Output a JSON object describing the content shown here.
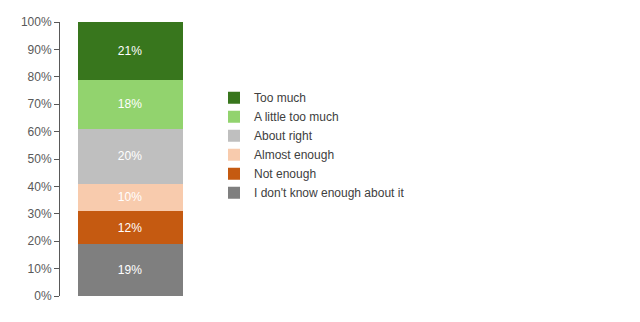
{
  "chart_data": {
    "type": "bar",
    "stacked": true,
    "categories": [
      null
    ],
    "series": [
      {
        "name": "I don't know enough about it",
        "color": "#7f7f7f",
        "values": [
          19
        ],
        "value_labels": [
          "19%"
        ]
      },
      {
        "name": "Not enough",
        "color": "#c55a11",
        "values": [
          12
        ],
        "value_labels": [
          "12%"
        ]
      },
      {
        "name": "Almost enough",
        "color": "#f8cbad",
        "values": [
          10
        ],
        "value_labels": [
          "10%"
        ]
      },
      {
        "name": "About right",
        "color": "#bfbfbf",
        "values": [
          20
        ],
        "value_labels": [
          "20%"
        ]
      },
      {
        "name": "A little too much",
        "color": "#92d36e",
        "values": [
          18
        ],
        "value_labels": [
          "18%"
        ]
      },
      {
        "name": "Too much",
        "color": "#38761d",
        "values": [
          21
        ],
        "value_labels": [
          "21%"
        ]
      }
    ],
    "ylim": [
      0,
      100
    ],
    "yticks": [
      {
        "value": 0,
        "label": "0%"
      },
      {
        "value": 10,
        "label": "10%"
      },
      {
        "value": 20,
        "label": "20%"
      },
      {
        "value": 30,
        "label": "30%"
      },
      {
        "value": 40,
        "label": "40%"
      },
      {
        "value": 50,
        "label": "50%"
      },
      {
        "value": 60,
        "label": "60%"
      },
      {
        "value": 70,
        "label": "70%"
      },
      {
        "value": 80,
        "label": "80%"
      },
      {
        "value": 90,
        "label": "90%"
      },
      {
        "value": 100,
        "label": "100%"
      }
    ],
    "grid": false,
    "legend": "right",
    "data_labels": true,
    "tick_labels": "y"
  }
}
